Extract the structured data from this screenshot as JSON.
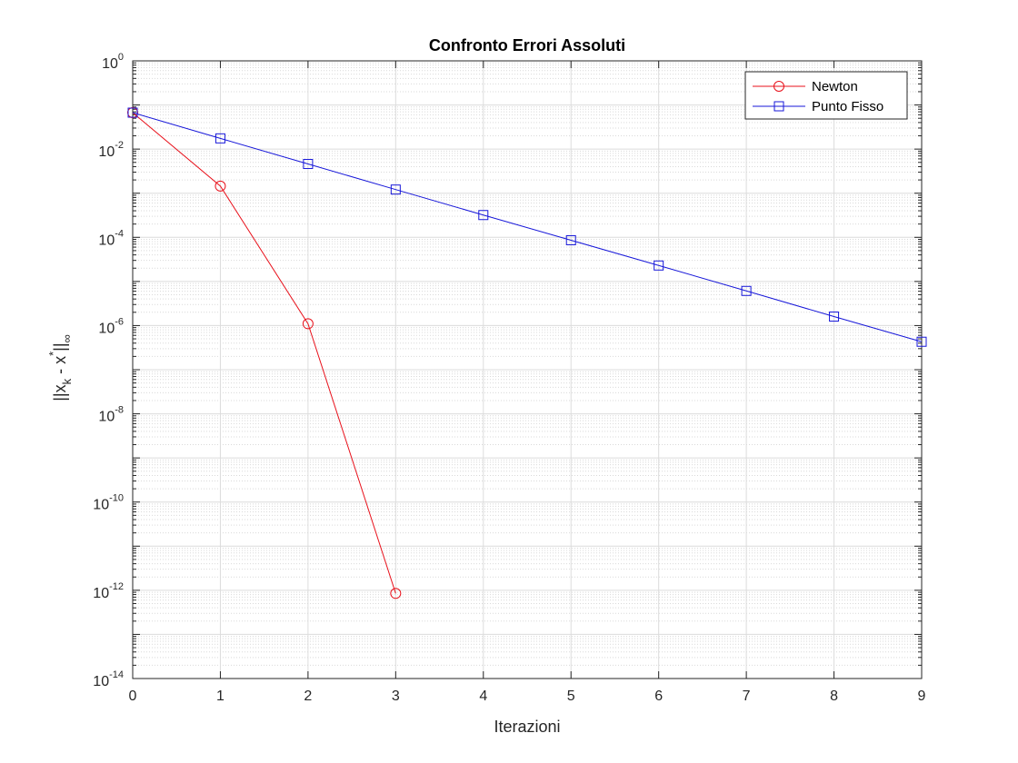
{
  "chart_data": {
    "type": "line",
    "title": "Confronto Errori Assoluti",
    "xlabel": "Iterazioni",
    "ylabel": {
      "base": "||x",
      "sub1": "k",
      "mid": " - x",
      "sup": "*",
      "tail": "||",
      "sub2": "∞"
    },
    "xlim": [
      0,
      9
    ],
    "ylim": [
      1e-14,
      1
    ],
    "yscale": "log",
    "grid": true,
    "minor_grid": true,
    "legend_position": "top-right",
    "x_ticks": [
      "0",
      "1",
      "2",
      "3",
      "4",
      "5",
      "6",
      "7",
      "8",
      "9"
    ],
    "y_ticks": [
      {
        "base": "10",
        "exp": "0"
      },
      {
        "base": "10",
        "exp": "-2"
      },
      {
        "base": "10",
        "exp": "-4"
      },
      {
        "base": "10",
        "exp": "-6"
      },
      {
        "base": "10",
        "exp": "-8"
      },
      {
        "base": "10",
        "exp": "-10"
      },
      {
        "base": "10",
        "exp": "-12"
      },
      {
        "base": "10",
        "exp": "-14"
      }
    ],
    "series": [
      {
        "name": "Newton",
        "color": "#e8111b",
        "marker": "circle",
        "x": [
          0,
          1,
          2,
          3
        ],
        "y": [
          0.067,
          0.00145,
          1.1e-06,
          8.5e-13
        ]
      },
      {
        "name": "Punto Fisso",
        "color": "#1717d9",
        "marker": "square",
        "x": [
          0,
          1,
          2,
          3,
          4,
          5,
          6,
          7,
          8,
          9
        ],
        "y": [
          0.067,
          0.0175,
          0.0046,
          0.00121,
          0.00032,
          8.6e-05,
          2.3e-05,
          6.1e-06,
          1.6e-06,
          4.3e-07
        ]
      }
    ]
  }
}
